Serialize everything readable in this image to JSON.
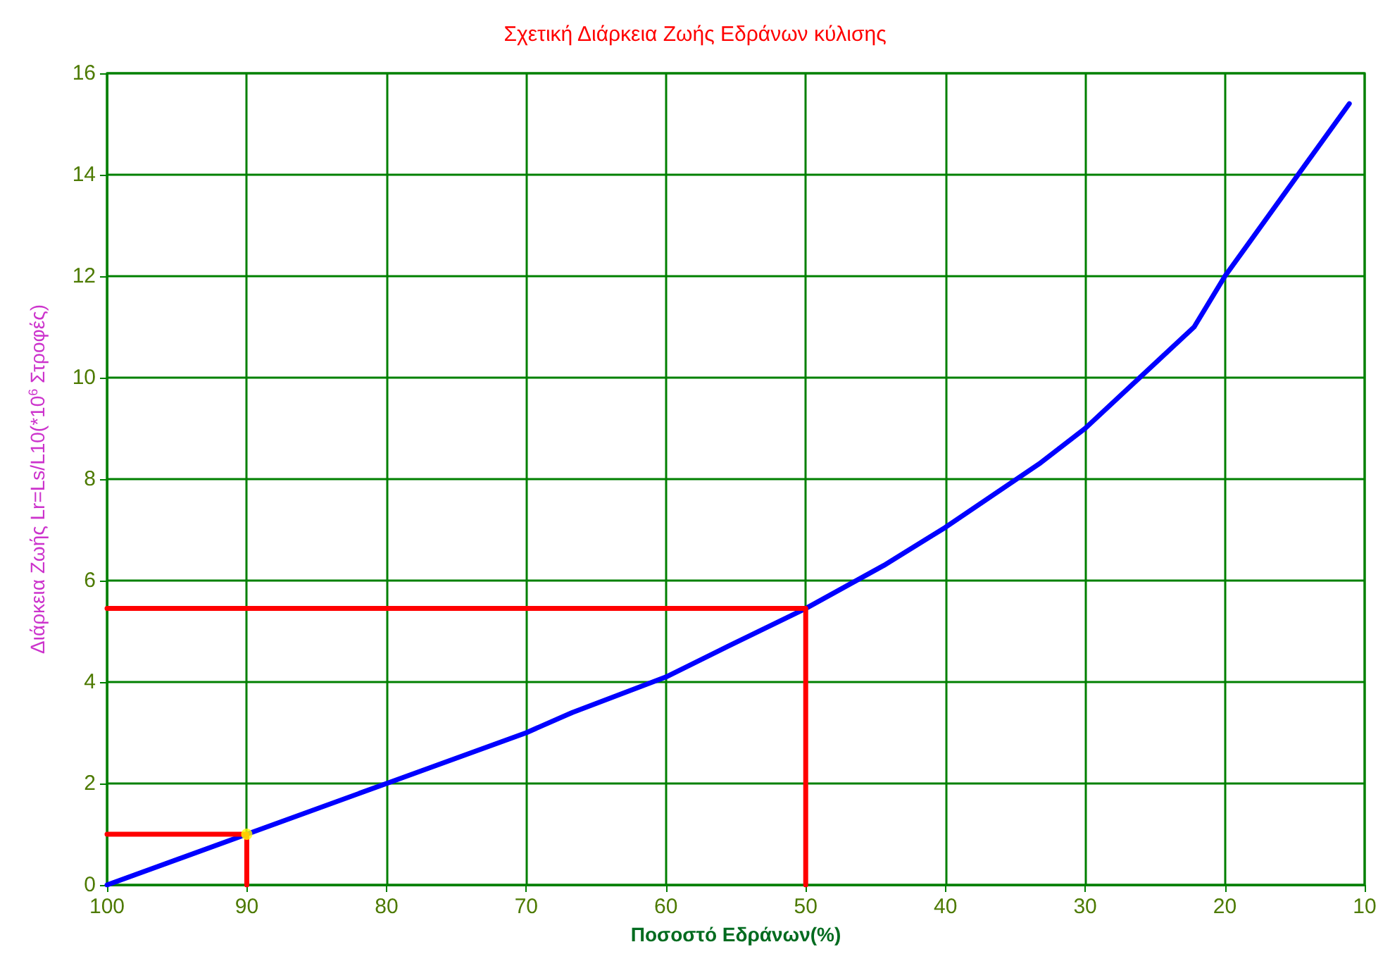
{
  "chart_data": {
    "type": "line",
    "title": "Σχετική Διάρκεια Ζωής Εδράνων κύλισης",
    "xlabel": "Ποσοστό Εδράνων(%)",
    "ylabel": "Διάρκεια Ζωής Lr=Ls/L10(*10$^{6}$ Στροφές)",
    "xlim": [
      100,
      10
    ],
    "xticks": [
      100,
      90,
      80,
      70,
      60,
      50,
      40,
      30,
      20,
      10
    ],
    "ylim": [
      0,
      16
    ],
    "yticks": [
      0,
      2,
      4,
      6,
      8,
      10,
      12,
      14,
      16
    ],
    "grid": true,
    "marker": "none",
    "line_style": "solid",
    "series": [
      {
        "color": "#0000ff",
        "x": [
          100,
          90,
          80,
          70,
          66.7,
          60,
          55.6,
          50,
          44.4,
          40,
          33.3,
          30,
          22.2,
          20,
          11.1
        ],
        "values": [
          0,
          1,
          2,
          3,
          3.4,
          4.1,
          4.7,
          5.45,
          6.3,
          7.05,
          8.3,
          9.0,
          11,
          12,
          15.4
        ]
      },
      {
        "color": "#ff0000",
        "x": [
          100,
          50,
          50
        ],
        "values": [
          5.45,
          5.45,
          0
        ]
      },
      {
        "color": "#ff0000",
        "x": [
          100,
          90,
          90
        ],
        "values": [
          1,
          1,
          0
        ]
      },
      {
        "type": "scatter",
        "color": "#ffff00",
        "marker": "circle",
        "x": [
          90
        ],
        "values": [
          1
        ]
      }
    ]
  }
}
